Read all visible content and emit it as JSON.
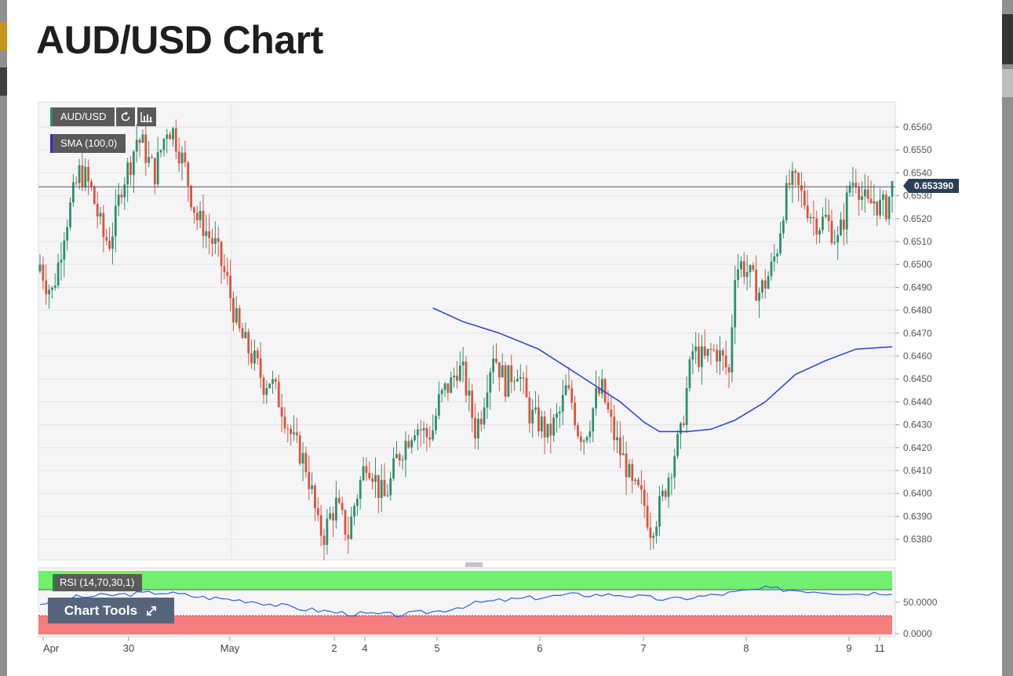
{
  "page": {
    "title": "AUD/USD Chart"
  },
  "legend": {
    "pair_label": "AUD/USD",
    "sma_label": "SMA (100,0)",
    "rsi_label": "RSI (14,70,30,1)"
  },
  "toolbar": {
    "refresh_icon": "refresh-icon",
    "bars_icon": "bar-chart-icon",
    "chart_tools_label": "Chart Tools",
    "expand_icon": "expand-icon"
  },
  "current_price": {
    "label": "0.653390",
    "value": 0.65339
  },
  "chart_data": [
    {
      "type": "candlestick",
      "title": "",
      "xlabel": "",
      "ylabel": "",
      "ylim": [
        0.6372,
        0.6571
      ],
      "y_ticks": [
        "0.6560",
        "0.6550",
        "0.6540",
        "0.6530",
        "0.6520",
        "0.6510",
        "0.6500",
        "0.6490",
        "0.6480",
        "0.6470",
        "0.6460",
        "0.6450",
        "0.6440",
        "0.6430",
        "0.6420",
        "0.6410",
        "0.6400",
        "0.6390",
        "0.6380"
      ],
      "x_ticks": [
        "Apr",
        "30",
        "May",
        "2",
        "4",
        "5",
        "6",
        "7",
        "8",
        "9",
        "11"
      ],
      "grid": true,
      "close_path": [
        [
          0,
          0.65
        ],
        [
          2,
          0.6492
        ],
        [
          4,
          0.6488
        ],
        [
          6,
          0.65
        ],
        [
          8,
          0.6515
        ],
        [
          10,
          0.6525
        ],
        [
          13,
          0.654
        ],
        [
          15,
          0.6538
        ],
        [
          17,
          0.6532
        ],
        [
          19,
          0.6522
        ],
        [
          21,
          0.6512
        ],
        [
          23,
          0.651
        ],
        [
          25,
          0.652
        ],
        [
          27,
          0.6535
        ],
        [
          30,
          0.6545
        ],
        [
          32,
          0.6555
        ],
        [
          34,
          0.6552
        ],
        [
          36,
          0.6545
        ],
        [
          38,
          0.654
        ],
        [
          40,
          0.655
        ],
        [
          42,
          0.656
        ],
        [
          44,
          0.6558
        ],
        [
          46,
          0.655
        ],
        [
          48,
          0.6542
        ],
        [
          50,
          0.653
        ],
        [
          52,
          0.652
        ],
        [
          54,
          0.6517
        ],
        [
          56,
          0.6512
        ],
        [
          58,
          0.6508
        ],
        [
          60,
          0.65
        ],
        [
          62,
          0.6492
        ],
        [
          64,
          0.648
        ],
        [
          66,
          0.647
        ],
        [
          68,
          0.6465
        ],
        [
          70,
          0.646
        ],
        [
          72,
          0.6455
        ],
        [
          74,
          0.6448
        ],
        [
          76,
          0.645
        ],
        [
          78,
          0.6444
        ],
        [
          80,
          0.6438
        ],
        [
          82,
          0.643
        ],
        [
          84,
          0.6422
        ],
        [
          86,
          0.6418
        ],
        [
          88,
          0.6412
        ],
        [
          90,
          0.64
        ],
        [
          92,
          0.6385
        ],
        [
          94,
          0.6382
        ],
        [
          96,
          0.639
        ],
        [
          98,
          0.6395
        ],
        [
          100,
          0.6388
        ],
        [
          102,
          0.6382
        ],
        [
          104,
          0.6395
        ],
        [
          106,
          0.6405
        ],
        [
          108,
          0.6415
        ],
        [
          110,
          0.641
        ],
        [
          112,
          0.6402
        ],
        [
          114,
          0.6398
        ],
        [
          116,
          0.6405
        ],
        [
          118,
          0.6415
        ],
        [
          120,
          0.642
        ],
        [
          122,
          0.6425
        ],
        [
          124,
          0.643
        ],
        [
          126,
          0.6428
        ],
        [
          128,
          0.6425
        ],
        [
          130,
          0.6428
        ],
        [
          132,
          0.644
        ],
        [
          134,
          0.6445
        ],
        [
          136,
          0.6448
        ],
        [
          138,
          0.6455
        ],
        [
          140,
          0.6452
        ],
        [
          142,
          0.644
        ],
        [
          144,
          0.6428
        ],
        [
          146,
          0.6435
        ],
        [
          148,
          0.645
        ],
        [
          150,
          0.6462
        ],
        [
          152,
          0.6455
        ],
        [
          154,
          0.6448
        ],
        [
          156,
          0.6452
        ],
        [
          158,
          0.6455
        ],
        [
          160,
          0.6445
        ],
        [
          162,
          0.6435
        ],
        [
          164,
          0.6432
        ],
        [
          166,
          0.643
        ],
        [
          168,
          0.6425
        ],
        [
          170,
          0.643
        ],
        [
          172,
          0.6435
        ],
        [
          174,
          0.6445
        ],
        [
          176,
          0.644
        ],
        [
          178,
          0.6428
        ],
        [
          180,
          0.6425
        ],
        [
          182,
          0.6432
        ],
        [
          184,
          0.6442
        ],
        [
          186,
          0.6445
        ],
        [
          188,
          0.6435
        ],
        [
          190,
          0.6425
        ],
        [
          192,
          0.6418
        ],
        [
          194,
          0.6412
        ],
        [
          196,
          0.6402
        ],
        [
          198,
          0.64
        ],
        [
          200,
          0.6395
        ],
        [
          202,
          0.6385
        ],
        [
          204,
          0.639
        ],
        [
          206,
          0.6398
        ],
        [
          208,
          0.6408
        ],
        [
          210,
          0.6418
        ],
        [
          212,
          0.6425
        ],
        [
          214,
          0.6445
        ],
        [
          216,
          0.6462
        ],
        [
          218,
          0.646
        ],
        [
          220,
          0.6458
        ],
        [
          222,
          0.6462
        ],
        [
          224,
          0.6462
        ],
        [
          226,
          0.6458
        ],
        [
          228,
          0.6452
        ],
        [
          230,
          0.6498
        ],
        [
          232,
          0.65
        ],
        [
          234,
          0.6497
        ],
        [
          236,
          0.6492
        ],
        [
          238,
          0.6488
        ],
        [
          240,
          0.6492
        ],
        [
          242,
          0.6498
        ],
        [
          244,
          0.6508
        ],
        [
          246,
          0.6525
        ],
        [
          248,
          0.6535
        ],
        [
          250,
          0.6535
        ],
        [
          252,
          0.653
        ],
        [
          254,
          0.6525
        ],
        [
          256,
          0.652
        ],
        [
          258,
          0.6518
        ],
        [
          260,
          0.652
        ],
        [
          262,
          0.6515
        ],
        [
          264,
          0.651
        ],
        [
          266,
          0.652
        ],
        [
          268,
          0.6535
        ],
        [
          270,
          0.6538
        ],
        [
          272,
          0.653
        ],
        [
          274,
          0.6525
        ],
        [
          276,
          0.6528
        ],
        [
          278,
          0.6525
        ],
        [
          280,
          0.6525
        ],
        [
          282,
          0.6534
        ]
      ],
      "candle_count": 283,
      "series": [
        {
          "name": "SMA (100,0)",
          "color": "#2a3ed6",
          "points": [
            [
              130,
              0.6481
            ],
            [
              140,
              0.6475
            ],
            [
              152,
              0.647
            ],
            [
              165,
              0.6463
            ],
            [
              178,
              0.6452
            ],
            [
              192,
              0.644
            ],
            [
              200,
              0.6431
            ],
            [
              205,
              0.6427
            ],
            [
              214,
              0.6427
            ],
            [
              222,
              0.6428
            ],
            [
              230,
              0.6432
            ],
            [
              240,
              0.644
            ],
            [
              250,
              0.6452
            ],
            [
              260,
              0.6458
            ],
            [
              270,
              0.6463
            ],
            [
              282,
              0.6464
            ]
          ]
        }
      ],
      "colors": {
        "up": "#2f8f6a",
        "down": "#d8543f"
      }
    },
    {
      "type": "line",
      "title": "",
      "ylim": [
        0,
        100
      ],
      "y_ticks": [
        "50.0000",
        "0.0000"
      ],
      "overbought": 70,
      "oversold": 30,
      "bands": {
        "overbought_color": "#6ff06f",
        "oversold_color": "#f57d7d"
      },
      "series": [
        {
          "name": "RSI (14,70,30,1)",
          "color": "#2a62e8",
          "values": [
            [
              0,
              48
            ],
            [
              12,
              58
            ],
            [
              26,
              62
            ],
            [
              40,
              66
            ],
            [
              54,
              58
            ],
            [
              70,
              52
            ],
            [
              86,
              40
            ],
            [
              102,
              32
            ],
            [
              118,
              30
            ],
            [
              132,
              36
            ],
            [
              146,
              50
            ],
            [
              160,
              56
            ],
            [
              176,
              62
            ],
            [
              192,
              62
            ],
            [
              208,
              54
            ],
            [
              224,
              62
            ],
            [
              240,
              72
            ],
            [
              256,
              68
            ],
            [
              270,
              64
            ],
            [
              282,
              66
            ]
          ]
        }
      ]
    }
  ]
}
